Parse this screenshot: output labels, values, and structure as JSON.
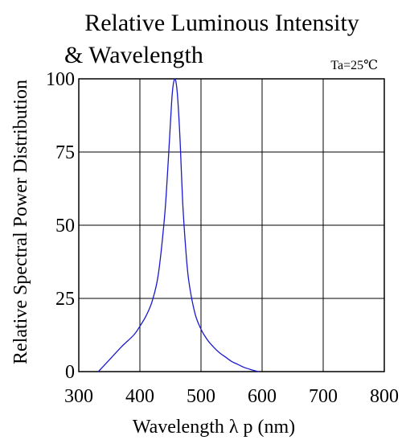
{
  "chart_data": {
    "type": "line",
    "title_line1": "Relative Luminous Intensity",
    "title_line2": "& Wavelength",
    "annotation": "Ta=25℃",
    "xlabel": "Wavelength  λ p (nm)",
    "ylabel": "Relative Spectral Power Distribution",
    "xlim": [
      300,
      800
    ],
    "ylim": [
      0,
      100
    ],
    "x_ticks": [
      300,
      400,
      500,
      600,
      700,
      800
    ],
    "y_ticks": [
      0,
      25,
      50,
      75,
      100
    ],
    "grid": true,
    "colors": {
      "curve": "#1a1acc",
      "axes": "#000000"
    },
    "series": [
      {
        "x": [
          332,
          350,
          370,
          390,
          400,
          410,
          420,
          430,
          440,
          445,
          450,
          453,
          456,
          459,
          462,
          466,
          470,
          475,
          480,
          490,
          500,
          510,
          520,
          530,
          540,
          550,
          560,
          570,
          580,
          590,
          595
        ],
        "y": [
          0,
          4,
          8.5,
          12.5,
          15.5,
          19,
          24,
          33,
          52,
          67,
          85,
          95,
          99.5,
          99,
          93,
          78,
          58,
          42,
          31,
          20,
          14.5,
          11,
          8.5,
          6.5,
          5,
          3.5,
          2.5,
          1.5,
          0.8,
          0.2,
          0
        ]
      }
    ]
  }
}
